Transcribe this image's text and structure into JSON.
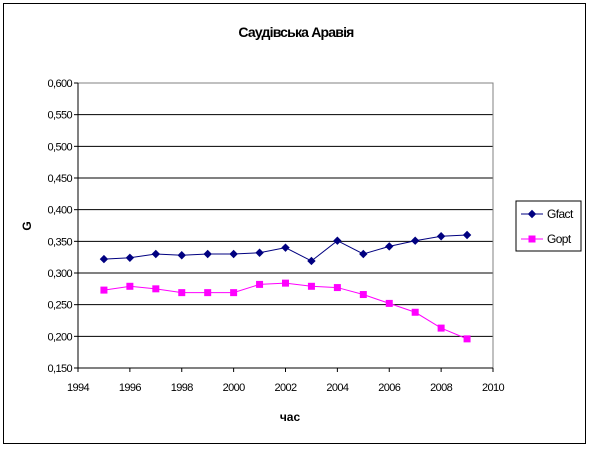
{
  "chart_data": {
    "type": "line",
    "title": "Саудівська Аравія",
    "xlabel": "час",
    "ylabel": "G",
    "xlim": [
      1994,
      2010
    ],
    "ylim": [
      0.15,
      0.6
    ],
    "x_ticks": [
      1994,
      1996,
      1998,
      2000,
      2002,
      2004,
      2006,
      2008,
      2010
    ],
    "y_ticks": [
      0.15,
      0.2,
      0.25,
      0.3,
      0.35,
      0.4,
      0.45,
      0.5,
      0.55,
      0.6
    ],
    "x_tick_labels": [
      "1994",
      "1996",
      "1998",
      "2000",
      "2002",
      "2004",
      "2006",
      "2008",
      "2010"
    ],
    "y_tick_labels": [
      "0,150",
      "0,200",
      "0,250",
      "0,300",
      "0,350",
      "0,400",
      "0,450",
      "0,500",
      "0,550",
      "0,600"
    ],
    "grid": true,
    "legend_position": "right",
    "x": [
      1995,
      1996,
      1997,
      1998,
      1999,
      2000,
      2001,
      2002,
      2003,
      2004,
      2005,
      2006,
      2007,
      2008,
      2009
    ],
    "series": [
      {
        "name": "Gfact",
        "color": "#000080",
        "marker": "diamond",
        "values": [
          0.322,
          0.324,
          0.33,
          0.328,
          0.33,
          0.33,
          0.332,
          0.34,
          0.319,
          0.351,
          0.33,
          0.342,
          0.351,
          0.358,
          0.36
        ]
      },
      {
        "name": "Gopt",
        "color": "#ff00ff",
        "marker": "square",
        "values": [
          0.273,
          0.279,
          0.275,
          0.269,
          0.269,
          0.269,
          0.282,
          0.284,
          0.279,
          0.277,
          0.266,
          0.252,
          0.238,
          0.213,
          0.196
        ]
      }
    ]
  }
}
